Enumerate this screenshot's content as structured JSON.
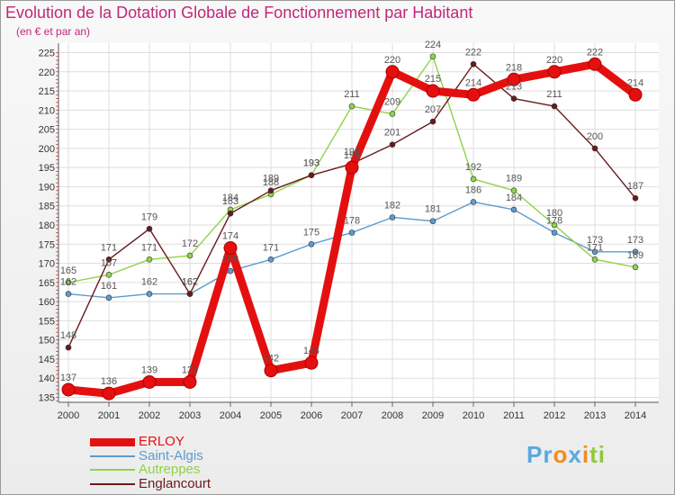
{
  "chart_data": {
    "type": "line",
    "title": "Evolution de la Dotation Globale de Fonctionnement par Habitant",
    "subtitle": "(en € et par an)",
    "x": [
      "2000",
      "2001",
      "2002",
      "2003",
      "2004",
      "2005",
      "2006",
      "2007",
      "2008",
      "2009",
      "2010",
      "2011",
      "2012",
      "2013",
      "2014"
    ],
    "ylim": [
      133,
      226
    ],
    "yticks": [
      135,
      140,
      145,
      150,
      155,
      160,
      165,
      170,
      175,
      180,
      185,
      190,
      195,
      200,
      205,
      210,
      215,
      220,
      225
    ],
    "series": [
      {
        "name": "ERLOY",
        "color": "#e41010",
        "values": [
          137,
          136,
          139,
          139,
          174,
          142,
          144,
          195,
          220,
          215,
          214,
          218,
          220,
          222,
          214
        ],
        "labels": [
          "137",
          "136",
          "139",
          "139",
          "174",
          "142",
          "144",
          "195",
          "220",
          "215",
          "214",
          "218",
          "220",
          "222",
          "214"
        ]
      },
      {
        "name": "Saint-Algis",
        "color": "#5b9bd0",
        "values": [
          162,
          161,
          162,
          162,
          168,
          171,
          175,
          178,
          182,
          181,
          186,
          184,
          178,
          173,
          173
        ],
        "labels": [
          "162",
          "161",
          "162",
          "162",
          "168",
          "171",
          "175",
          "178",
          "182",
          "181",
          "186",
          "184",
          "178",
          "173",
          "173"
        ]
      },
      {
        "name": "Autreppes",
        "color": "#8fd34a",
        "values": [
          165,
          167,
          171,
          172,
          184,
          188,
          193,
          211,
          209,
          224,
          192,
          189,
          180,
          171,
          169
        ],
        "labels": [
          "165",
          "167",
          "171",
          "172",
          "184",
          "188",
          "193",
          "211",
          "209",
          "224",
          "192",
          "189",
          "180",
          "171",
          "169"
        ]
      },
      {
        "name": "Englancourt",
        "color": "#6b1a1a",
        "values": [
          148,
          171,
          179,
          162,
          183,
          189,
          193,
          196,
          201,
          207,
          222,
          213,
          211,
          200,
          187
        ],
        "labels": [
          "148",
          "171",
          "179",
          "162",
          "183",
          "189",
          "193",
          "196",
          "201",
          "207",
          "222",
          "213",
          "211",
          "200",
          "187"
        ]
      }
    ]
  },
  "legend": [
    {
      "name": "ERLOY",
      "color": "#e41010"
    },
    {
      "name": "Saint-Algis",
      "color": "#5b9bd0"
    },
    {
      "name": "Autreppes",
      "color": "#8fd34a"
    },
    {
      "name": "Englancourt",
      "color": "#6b1a1a"
    }
  ],
  "logo": {
    "letters": [
      "P",
      "r",
      "o",
      "x",
      "i",
      "t",
      "i"
    ],
    "colors": [
      "#5aa8e0",
      "#5aa8e0",
      "#f08c1e",
      "#5aa8e0",
      "#f08c1e",
      "#8fc83c",
      "#8fc83c"
    ]
  }
}
